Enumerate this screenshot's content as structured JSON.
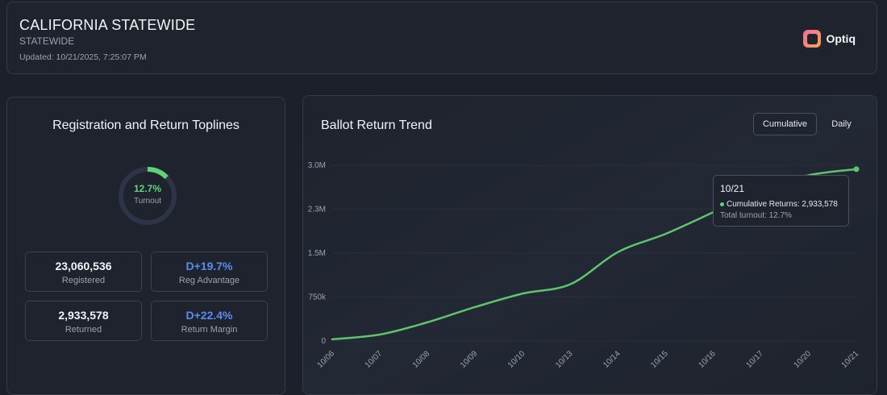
{
  "header": {
    "title": "CALIFORNIA STATEWIDE",
    "subtitle": "STATEWIDE",
    "updated": "Updated: 10/21/2025, 7:25:07 PM",
    "brand": "Optiq"
  },
  "toplines": {
    "title": "Registration and Return Toplines",
    "gauge": {
      "value_text": "12.7%",
      "label": "Turnout",
      "fraction": 0.127
    },
    "stats": {
      "registered": {
        "value": "23,060,536",
        "label": "Registered"
      },
      "reg_advantage": {
        "value": "D+19.7%",
        "label": "Reg Advantage"
      },
      "returned": {
        "value": "2,933,578",
        "label": "Returned"
      },
      "return_margin": {
        "value": "D+22.4%",
        "label": "Return Margin"
      }
    }
  },
  "trend": {
    "title": "Ballot Return Trend",
    "toggles": {
      "cumulative": "Cumulative",
      "daily": "Daily"
    },
    "tooltip": {
      "date": "10/21",
      "line": "Cumulative Returns: 2,933,578",
      "sub": "Total turnout: 12.7%"
    }
  },
  "chart_data": {
    "type": "line",
    "title": "Ballot Return Trend",
    "x": [
      "10/06",
      "10/07",
      "10/08",
      "10/09",
      "10/10",
      "10/13",
      "10/14",
      "10/15",
      "10/16",
      "10/17",
      "10/20",
      "10/21"
    ],
    "y_ticks": [
      {
        "value": 0,
        "label": "0"
      },
      {
        "value": 750000,
        "label": "750k"
      },
      {
        "value": 1500000,
        "label": "1.5M"
      },
      {
        "value": 2250000,
        "label": "2.3M"
      },
      {
        "value": 3000000,
        "label": "3.0M"
      }
    ],
    "ylim": [
      0,
      3000000
    ],
    "series": [
      {
        "name": "Cumulative Returns",
        "color": "#5fc46e",
        "values": [
          30000,
          110000,
          320000,
          580000,
          810000,
          970000,
          1520000,
          1830000,
          2200000,
          2590000,
          2830000,
          2933578
        ]
      }
    ],
    "grid": true,
    "legend": "none"
  }
}
